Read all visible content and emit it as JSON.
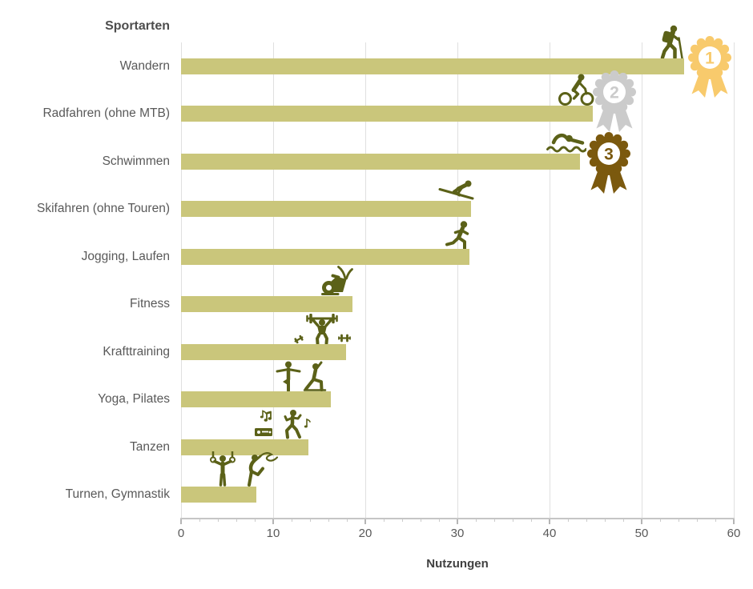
{
  "chart_data": {
    "type": "bar",
    "orientation": "horizontal",
    "title": "Sportarten",
    "bar_color": "#cac67b",
    "icon_color": "#5b6118",
    "grid": "vertical",
    "legend": "none",
    "x_axis": {
      "label": "Nutzungen",
      "min": 0,
      "max": 60,
      "ticks": [
        0,
        10,
        20,
        30,
        40,
        50,
        60
      ],
      "minor_tick_step": 2
    },
    "categories": [
      "Wandern",
      "Radfahren (ohne MTB)",
      "Schwimmen",
      "Skifahren (ohne Touren)",
      "Jogging, Laufen",
      "Fitness",
      "Krafttraining",
      "Yoga, Pilates",
      "Tanzen",
      "Turnen, Gymnastik"
    ],
    "values": [
      54.6,
      44.7,
      43.3,
      31.5,
      31.3,
      18.6,
      17.9,
      16.3,
      13.8,
      8.2
    ],
    "rows": [
      {
        "label": "Wandern",
        "value": 54.6,
        "icon": "hiker-icon",
        "medal": {
          "rank": "1",
          "color": "#f8ca6c",
          "icon": "gold-rosette-medal-icon"
        }
      },
      {
        "label": "Radfahren (ohne MTB)",
        "value": 44.7,
        "icon": "cyclist-icon",
        "medal": {
          "rank": "2",
          "color": "#cbcbcb",
          "icon": "silver-rosette-medal-icon"
        }
      },
      {
        "label": "Schwimmen",
        "value": 43.3,
        "icon": "swimmer-icon",
        "medal": {
          "rank": "3",
          "color": "#7b590e",
          "icon": "bronze-rosette-medal-icon"
        }
      },
      {
        "label": "Skifahren (ohne Touren)",
        "value": 31.5,
        "icon": "skier-icon",
        "medal": null
      },
      {
        "label": "Jogging, Laufen",
        "value": 31.3,
        "icon": "runner-icon",
        "medal": null
      },
      {
        "label": "Fitness",
        "value": 18.6,
        "icon": "exercise-bike-icon",
        "medal": null
      },
      {
        "label": "Krafttraining",
        "value": 17.9,
        "icon": "weightlifter-icon",
        "medal": null
      },
      {
        "label": "Yoga, Pilates",
        "value": 16.3,
        "icon": "yoga-icon",
        "medal": null
      },
      {
        "label": "Tanzen",
        "value": 13.8,
        "icon": "dancer-icon",
        "medal": null
      },
      {
        "label": "Turnen, Gymnastik",
        "value": 8.2,
        "icon": "gymnast-icon",
        "medal": null
      }
    ]
  }
}
